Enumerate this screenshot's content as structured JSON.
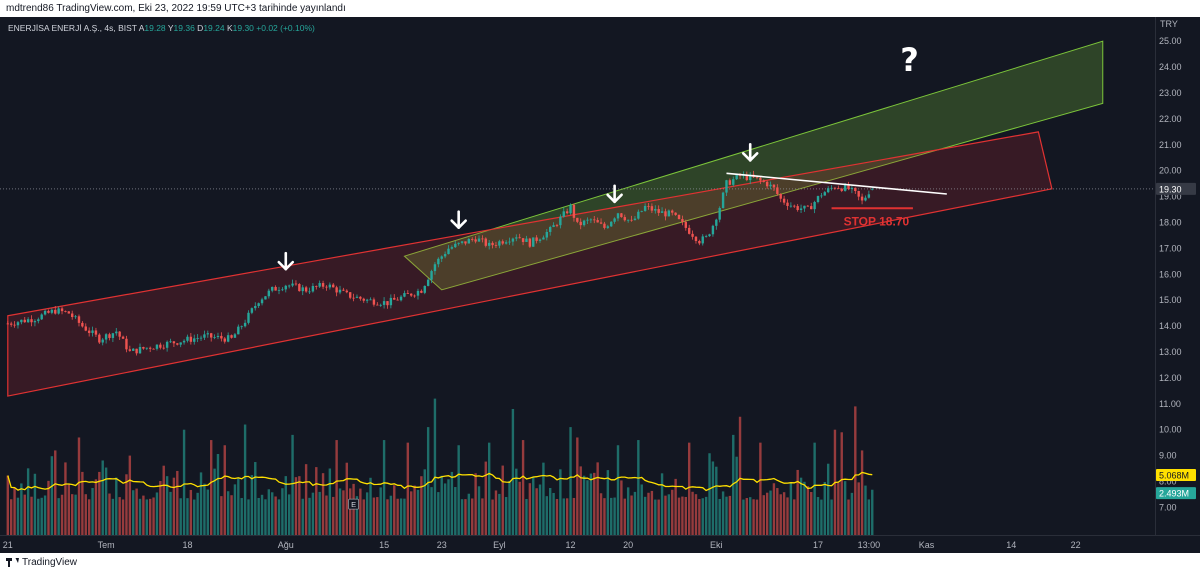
{
  "header": {
    "publish_line": "mdtrend86 TradingView.com, Eki 23, 2022 19:59 UTC+3 tarihinde yayınlandı"
  },
  "footer": {
    "brand": "TradingView"
  },
  "colors": {
    "background": "#131722",
    "up": "#26a69a",
    "down": "#ef5350",
    "channel_green": "#7cc53a",
    "channel_red": "#e03232",
    "volume_ma": "#ffe000",
    "white": "#ffffff"
  },
  "chart_data": {
    "type": "candlestick",
    "symbol": {
      "name": "ENERJİSA ENERJİ A.Ş., 4s, BIST",
      "o_label": "A",
      "o": "19.28",
      "h_label": "Y",
      "h": "19.36",
      "l_label": "D",
      "l": "19.24",
      "c_label": "K",
      "c": "19.30",
      "change": "+0.02 (+0.10%)"
    },
    "currency": "TRY",
    "ylim": [
      7.0,
      25.0
    ],
    "y_ticks": [
      "25.00",
      "24.00",
      "23.00",
      "22.00",
      "21.00",
      "20.00",
      "19.00",
      "18.00",
      "17.00",
      "16.00",
      "15.00",
      "14.00",
      "13.00",
      "12.00",
      "11.00",
      "10.00",
      "9.00",
      "8.00",
      "7.00"
    ],
    "x_ticks": [
      {
        "label": "21",
        "bar": 0
      },
      {
        "label": "Tem",
        "bar": 29
      },
      {
        "label": "18",
        "bar": 53
      },
      {
        "label": "Ağu",
        "bar": 82
      },
      {
        "label": "15",
        "bar": 111
      },
      {
        "label": "23",
        "bar": 128
      },
      {
        "label": "Eyl",
        "bar": 145
      },
      {
        "label": "12",
        "bar": 166
      },
      {
        "label": "20",
        "bar": 183
      },
      {
        "label": "Eki",
        "bar": 209
      },
      {
        "label": "17",
        "bar": 239
      },
      {
        "label": "13:00",
        "bar": 254
      },
      {
        "label": "Kas",
        "bar": 271
      },
      {
        "label": "14",
        "bar": 296
      },
      {
        "label": "22",
        "bar": 315
      }
    ],
    "price_anchors": [
      [
        0,
        14.1
      ],
      [
        8,
        14.3
      ],
      [
        14,
        14.6
      ],
      [
        18,
        14.5
      ],
      [
        22,
        14.0
      ],
      [
        27,
        13.5
      ],
      [
        32,
        13.8
      ],
      [
        36,
        13.0
      ],
      [
        42,
        13.2
      ],
      [
        50,
        13.4
      ],
      [
        58,
        13.6
      ],
      [
        66,
        13.5
      ],
      [
        70,
        14.2
      ],
      [
        74,
        15.0
      ],
      [
        78,
        15.4
      ],
      [
        82,
        15.6
      ],
      [
        88,
        15.4
      ],
      [
        94,
        15.6
      ],
      [
        100,
        15.2
      ],
      [
        106,
        15.0
      ],
      [
        112,
        14.9
      ],
      [
        118,
        15.2
      ],
      [
        122,
        15.4
      ],
      [
        126,
        16.4
      ],
      [
        130,
        17.0
      ],
      [
        134,
        17.2
      ],
      [
        138,
        17.4
      ],
      [
        142,
        17.1
      ],
      [
        146,
        17.3
      ],
      [
        150,
        17.5
      ],
      [
        154,
        17.2
      ],
      [
        160,
        17.7
      ],
      [
        164,
        18.3
      ],
      [
        166,
        18.6
      ],
      [
        168,
        17.9
      ],
      [
        172,
        18.1
      ],
      [
        176,
        17.8
      ],
      [
        180,
        18.4
      ],
      [
        184,
        18.0
      ],
      [
        188,
        18.6
      ],
      [
        192,
        18.4
      ],
      [
        196,
        18.3
      ],
      [
        200,
        17.8
      ],
      [
        204,
        17.3
      ],
      [
        206,
        17.4
      ],
      [
        208,
        17.9
      ],
      [
        210,
        18.6
      ],
      [
        212,
        19.5
      ],
      [
        216,
        19.8
      ],
      [
        220,
        19.7
      ],
      [
        224,
        19.5
      ],
      [
        226,
        19.3
      ],
      [
        228,
        18.9
      ],
      [
        232,
        18.6
      ],
      [
        236,
        18.5
      ],
      [
        240,
        19.1
      ],
      [
        244,
        19.4
      ],
      [
        248,
        19.3
      ],
      [
        250,
        19.1
      ],
      [
        252,
        18.8
      ],
      [
        254,
        19.2
      ],
      [
        255,
        19.3
      ]
    ],
    "volume_spikes": [
      [
        14,
        9.2
      ],
      [
        21,
        9.7
      ],
      [
        36,
        9.0
      ],
      [
        52,
        10.0
      ],
      [
        60,
        9.6
      ],
      [
        64,
        9.4
      ],
      [
        70,
        10.2
      ],
      [
        84,
        9.8
      ],
      [
        97,
        9.6
      ],
      [
        111,
        9.6
      ],
      [
        118,
        9.5
      ],
      [
        124,
        10.1
      ],
      [
        126,
        11.2
      ],
      [
        133,
        9.4
      ],
      [
        142,
        9.5
      ],
      [
        149,
        10.8
      ],
      [
        152,
        9.6
      ],
      [
        166,
        10.1
      ],
      [
        168,
        9.7
      ],
      [
        180,
        9.4
      ],
      [
        186,
        9.6
      ],
      [
        201,
        9.5
      ],
      [
        214,
        9.8
      ],
      [
        216,
        10.5
      ],
      [
        222,
        9.5
      ],
      [
        238,
        9.5
      ],
      [
        244,
        10.0
      ],
      [
        246,
        9.9
      ],
      [
        250,
        10.9
      ],
      [
        252,
        9.2
      ]
    ],
    "volume_ma_label": "5.068M",
    "last_volume_label": "2.493M",
    "drawings": {
      "green_channel": {
        "top": [
          [
            117,
            16.7
          ],
          [
            323,
            25.0
          ]
        ],
        "bottom": [
          [
            128,
            15.4
          ],
          [
            323,
            22.6
          ]
        ]
      },
      "red_channel": {
        "top": [
          [
            0,
            14.4
          ],
          [
            304,
            21.5
          ]
        ],
        "bottom": [
          [
            0,
            11.3
          ],
          [
            308,
            19.3
          ]
        ]
      },
      "triangle_top": [
        [
          212,
          19.9
        ],
        [
          277,
          19.1
        ]
      ],
      "arrows": [
        [
          82,
          16.2
        ],
        [
          133,
          17.8
        ],
        [
          179,
          18.8
        ],
        [
          219,
          20.4
        ]
      ],
      "question": [
        266,
        24.0
      ],
      "stop": {
        "label": "STOP 18.70",
        "price": 18.55,
        "from_bar": 243,
        "to_bar": 267
      }
    }
  }
}
